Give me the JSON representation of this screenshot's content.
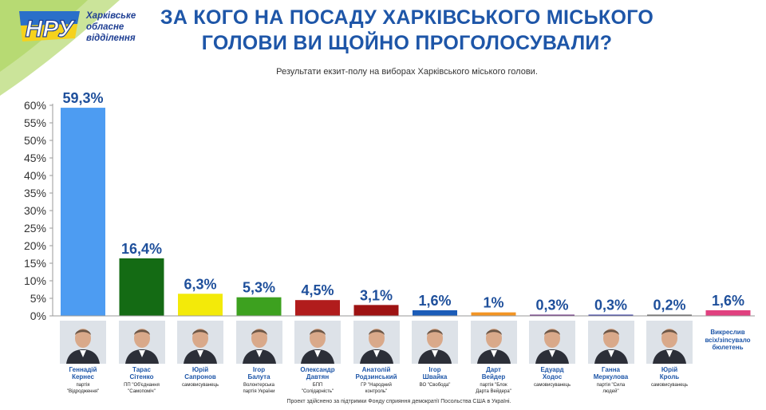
{
  "logo": {
    "mark": "НРУ",
    "line1": "Харківське",
    "line2": "обласне",
    "line3": "відділення"
  },
  "title": {
    "line1": "ЗА КОГО НА ПОСАДУ ХАРКІВСЬКОГО МІСЬКОГО",
    "line2": "ГОЛОВИ ВИ ЩОЙНО ПРОГОЛОСУВАЛИ?"
  },
  "subtitle": "Результати екзит-полу на виборах Харківського міського голови.",
  "footer": "Проект здійснено за підтримки Фонду сприяння демократії Посольства США в Україні.",
  "candidates": [
    {
      "name": "Геннадій\nКернес",
      "party": "партія\n\"Відродження\""
    },
    {
      "name": "Тарас\nСітенко",
      "party": "ПП \"Об'єднання\n\"Самопоміч\""
    },
    {
      "name": "Юрій\nСапронов",
      "party": "самовисуванець"
    },
    {
      "name": "Ігор\nБалута",
      "party": "Волонтерська\nпартія України"
    },
    {
      "name": "Олександр\nДавтян",
      "party": "БПП\n\"Солідарність\""
    },
    {
      "name": "Анатолій\nРодзинський",
      "party": "ГР \"Народний\nконтроль\""
    },
    {
      "name": "Ігор\nШвайка",
      "party": "ВО \"Свобода\""
    },
    {
      "name": "Дарт\nВейдер",
      "party": "партія \"Блок\nДарта Вейдера\""
    },
    {
      "name": "Едуард\nХодос",
      "party": "самовисуванець"
    },
    {
      "name": "Ганна\nМеркулова",
      "party": "партія \"Сила\nлюдей\""
    },
    {
      "name": "Юрій\nКроль",
      "party": "самовисуванець"
    }
  ],
  "spoiled_label": "Викреслив\nвсіх/зіпсувало\nбюлетень",
  "chart_data": {
    "type": "bar",
    "title": "ЗА КОГО НА ПОСАДУ ХАРКІВСЬКОГО МІСЬКОГО ГОЛОВИ ВИ ЩОЙНО ПРОГОЛОСУВАЛИ?",
    "subtitle": "Результати екзит-полу на виборах Харківського міського голови.",
    "categories": [
      "Геннадій Кернес",
      "Тарас Сітенко",
      "Юрій Сапронов",
      "Ігор Балута",
      "Олександр Давтян",
      "Анатолій Родзинський",
      "Ігор Швайка",
      "Дарт Вейдер",
      "Едуард Ходос",
      "Ганна Меркулова",
      "Юрій Кроль",
      "Викреслив всіх/зіпсувало бюлетень"
    ],
    "values": [
      59.3,
      16.4,
      6.3,
      5.3,
      4.5,
      3.1,
      1.6,
      1,
      0.3,
      0.3,
      0.2,
      1.6
    ],
    "value_labels": [
      "59,3%",
      "16,4%",
      "6,3%",
      "5,3%",
      "4,5%",
      "3,1%",
      "1,6%",
      "1%",
      "0,3%",
      "0,3%",
      "0,2%",
      "1,6%"
    ],
    "colors": [
      "#4d9cf2",
      "#146b14",
      "#f3ea09",
      "#3da11f",
      "#b11c1c",
      "#9e1313",
      "#1b5cb8",
      "#f29423",
      "#63207a",
      "#2b2f9b",
      "#555555",
      "#e0407f"
    ],
    "yticks": [
      "0%",
      "5%",
      "10%",
      "15%",
      "20%",
      "25%",
      "30%",
      "35%",
      "40%",
      "45%",
      "50%",
      "55%",
      "60%"
    ],
    "ylim": [
      0,
      60
    ],
    "grid": false,
    "xlabel": "",
    "ylabel": ""
  }
}
